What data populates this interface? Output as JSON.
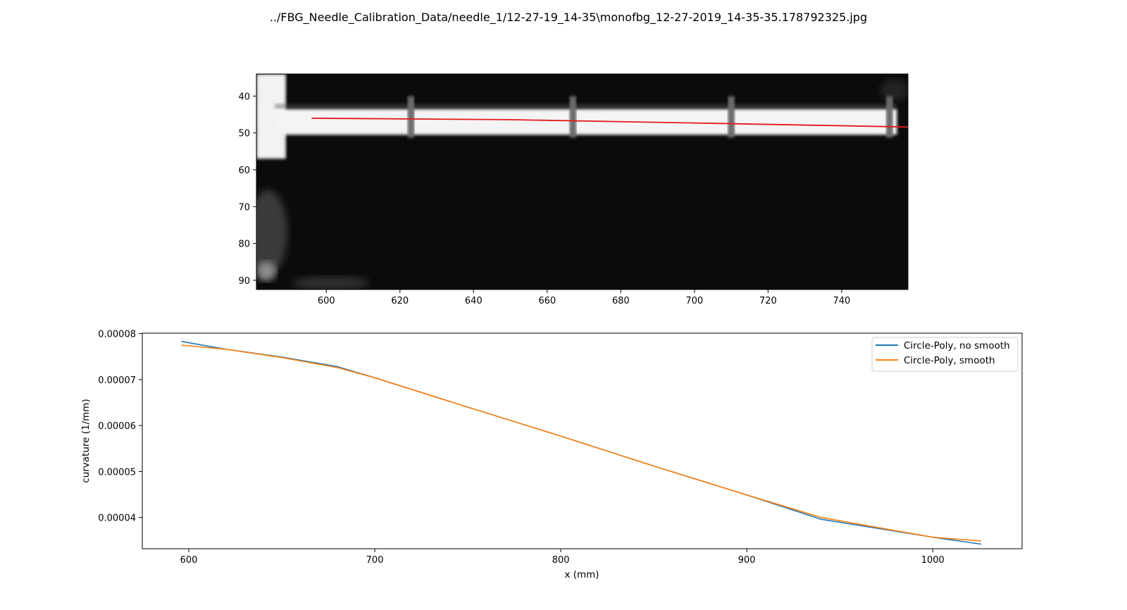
{
  "figure": {
    "suptitle": "../FBG_Needle_Calibration_Data/needle_1/12-27-19_14-35\\monofbg_12-27-2019_14-35-35.178792325.jpg"
  },
  "chart_data": [
    {
      "type": "image",
      "xlim": [
        581,
        758
      ],
      "ylim": [
        92.5,
        34
      ],
      "y_inverted": true,
      "xticks": [
        600,
        620,
        640,
        660,
        680,
        700,
        720,
        740
      ],
      "yticks": [
        40,
        50,
        60,
        70,
        80,
        90
      ],
      "image_colormap": "gray",
      "overlay_series": [
        {
          "color": "#e31a1c",
          "x": [
            596,
            650,
            700,
            758
          ],
          "y": [
            46.0,
            46.4,
            47.3,
            48.4
          ]
        }
      ],
      "bright_band": {
        "y_top": 43.5,
        "y_bottom": 50.5,
        "x_start": 586,
        "x_end": 755,
        "segment_breaks_x": [
          623,
          667,
          710,
          753
        ]
      }
    },
    {
      "type": "line",
      "xlabel": "x (mm)",
      "ylabel": "curvature (1/mm)",
      "xlim": [
        575,
        1048
      ],
      "ylim": [
        3.32e-05,
        8.01e-05
      ],
      "xticks": [
        600,
        700,
        800,
        900,
        1000
      ],
      "yticks": [
        4e-05,
        5e-05,
        6e-05,
        7e-05,
        8e-05
      ],
      "ytick_labels": [
        "0.00004",
        "0.00005",
        "0.00006",
        "0.00007",
        "0.00008"
      ],
      "legend_position": "upper right",
      "series": [
        {
          "name": "Circle-Poly, no smooth",
          "color": "#1f77b4",
          "x": [
            596,
            620,
            650,
            680,
            700,
            750,
            800,
            850,
            900,
            940,
            1000,
            1026
          ],
          "y": [
            7.83e-05,
            7.66e-05,
            7.49e-05,
            7.28e-05,
            7.04e-05,
            6.4e-05,
            5.77e-05,
            5.12e-05,
            4.49e-05,
            3.96e-05,
            3.57e-05,
            3.42e-05
          ]
        },
        {
          "name": "Circle-Poly, smooth",
          "color": "#ff7f0e",
          "x": [
            596,
            620,
            650,
            680,
            700,
            750,
            800,
            850,
            900,
            940,
            1000,
            1026
          ],
          "y": [
            7.75e-05,
            7.66e-05,
            7.48e-05,
            7.26e-05,
            7.04e-05,
            6.4e-05,
            5.77e-05,
            5.12e-05,
            4.49e-05,
            4e-05,
            3.57e-05,
            3.49e-05
          ]
        }
      ]
    }
  ]
}
